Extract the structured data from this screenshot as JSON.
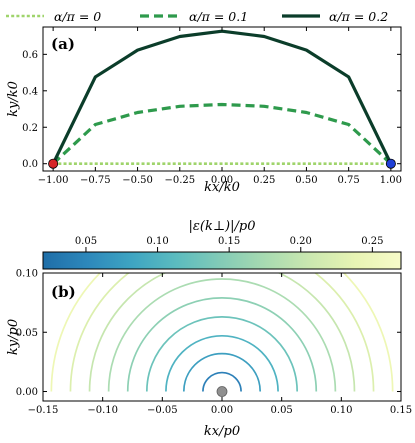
{
  "legend": [
    {
      "label": "α/π = 0",
      "color": "#9fd46b",
      "dash": "3,2.2"
    },
    {
      "label": "α/π = 0.1",
      "color": "#2e9a4c",
      "dash": "9,5"
    },
    {
      "label": "α/π = 0.2",
      "color": "#0b3d2a",
      "dash": ""
    }
  ],
  "chart_data": [
    {
      "type": "line",
      "panel_label": "(a)",
      "xlabel": "kx/k0",
      "ylabel": "ky/k0",
      "xlim": [
        -1.06,
        1.06
      ],
      "ylim": [
        -0.04,
        0.75
      ],
      "xticks": [
        -1.0,
        -0.75,
        -0.5,
        -0.25,
        0.0,
        0.25,
        0.5,
        0.75,
        1.0
      ],
      "xtick_labels": [
        "−1.00",
        "−0.75",
        "−0.50",
        "−0.25",
        "0.00",
        "0.25",
        "0.50",
        "0.75",
        "1.00"
      ],
      "yticks": [
        0.0,
        0.2,
        0.4,
        0.6
      ],
      "ytick_labels": [
        "0.0",
        "0.2",
        "0.4",
        "0.6"
      ],
      "series": [
        {
          "name": "α/π = 0",
          "x": [
            -1.0,
            -0.75,
            -0.5,
            -0.25,
            0.0,
            0.25,
            0.5,
            0.75,
            1.0
          ],
          "y": [
            0,
            0,
            0,
            0,
            0,
            0,
            0,
            0,
            0
          ]
        },
        {
          "name": "α/π = 0.1",
          "x": [
            -1.0,
            -0.75,
            -0.5,
            -0.25,
            0.0,
            0.25,
            0.5,
            0.75,
            1.0
          ],
          "y": [
            0.0,
            0.215,
            0.281,
            0.315,
            0.325,
            0.315,
            0.281,
            0.215,
            0.0
          ]
        },
        {
          "name": "α/π = 0.2",
          "x": [
            -1.0,
            -0.75,
            -0.5,
            -0.25,
            0.0,
            0.25,
            0.5,
            0.75,
            1.0
          ],
          "y": [
            0.0,
            0.476,
            0.623,
            0.698,
            0.727,
            0.698,
            0.623,
            0.476,
            0.0
          ]
        }
      ],
      "endpoints": [
        {
          "x": -1.0,
          "y": 0.0,
          "color": "#d62728"
        },
        {
          "x": 1.0,
          "y": 0.0,
          "color": "#1f3fd6"
        }
      ]
    },
    {
      "type": "contour",
      "panel_label": "(b)",
      "xlabel": "kx/p0",
      "ylabel": "ky/p0",
      "xlim": [
        -0.15,
        0.15
      ],
      "ylim": [
        -0.008,
        0.1
      ],
      "xticks": [
        -0.15,
        -0.1,
        -0.05,
        0.0,
        0.05,
        0.1,
        0.15
      ],
      "xtick_labels": [
        "−0.15",
        "−0.10",
        "−0.05",
        "0.00",
        "0.05",
        "0.10",
        "0.15"
      ],
      "yticks": [
        0.0,
        0.05,
        0.1
      ],
      "ytick_labels": [
        "0.00",
        "0.05",
        "0.10"
      ],
      "contour_radii": [
        0.016,
        0.032,
        0.047,
        0.063,
        0.079,
        0.095,
        0.111,
        0.127,
        0.143
      ],
      "contour_colors": [
        "#2d80b8",
        "#3d9fc0",
        "#4fb3c2",
        "#6cc3bb",
        "#8dd0b4",
        "#abdcb2",
        "#c6e6af",
        "#dcefae",
        "#eef7b5"
      ],
      "center_point": {
        "x": 0.0,
        "y": 0.0,
        "color": "#909090"
      },
      "colorbar": {
        "label": "|ε(k⊥)|/p0",
        "range": [
          0.02,
          0.27
        ],
        "ticks": [
          0.05,
          0.1,
          0.15,
          0.2,
          0.25
        ],
        "tick_labels": [
          "0.05",
          "0.10",
          "0.15",
          "0.20",
          "0.25"
        ],
        "colors": [
          "#1f6ea8",
          "#2d88bb",
          "#3ea5c2",
          "#5cbcbf",
          "#84cbb6",
          "#a9dbb1",
          "#cce8b0",
          "#e8f4b4",
          "#f7fbc9"
        ]
      }
    }
  ]
}
